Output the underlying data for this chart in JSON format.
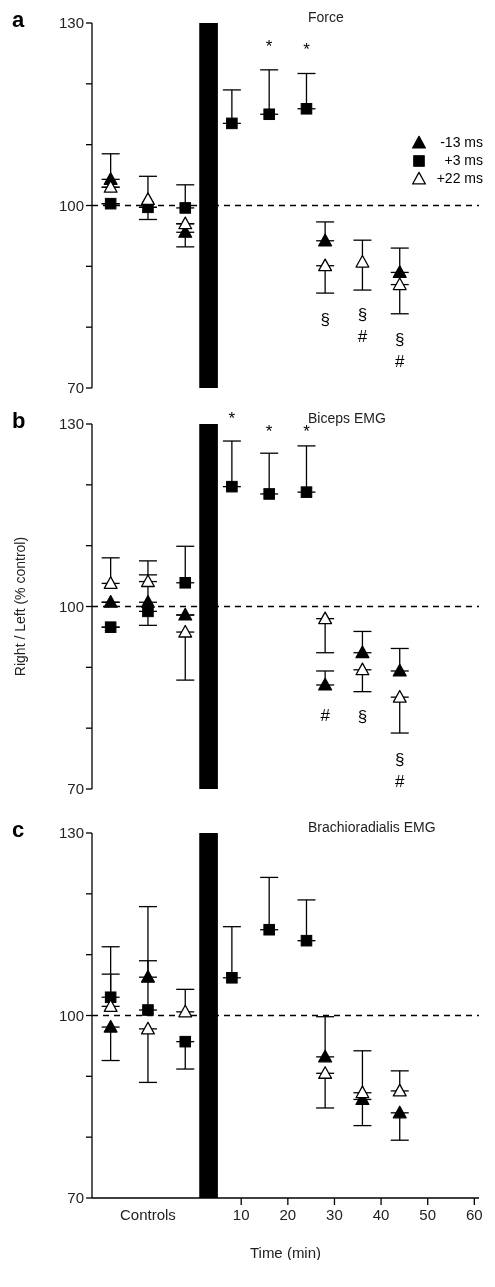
{
  "chart_data": [
    {
      "type": "scatter",
      "title": "Force",
      "annotations": [
        "a",
        "*",
        "*",
        "§",
        "§",
        "#",
        "§",
        "#"
      ],
      "xlim": [
        -22,
        61
      ],
      "ylim": [
        70,
        130
      ],
      "yticks": [
        70,
        {
          "value": 80,
          "label": null
        },
        {
          "value": 90,
          "label": null
        },
        100,
        {
          "value": 110,
          "label": null
        },
        {
          "value": 120,
          "label": null
        },
        130
      ],
      "tick_labels": "y",
      "legend": "top right",
      "ref_lines": [
        {
          "axis": "y",
          "value": 100,
          "color": "#000000",
          "line_style": "dashed"
        }
      ],
      "bands": [
        {
          "axis": "x",
          "from": 1,
          "to": 5,
          "color": "#000000"
        }
      ],
      "series": [
        {
          "name": "-13 ms",
          "color": "#000000",
          "marker": "triangle",
          "x": [
            -18,
            -2,
            28,
            44
          ],
          "values": [
            104.3,
            95.6,
            94.2,
            89.0
          ],
          "errors": [
            [
              104.3,
              108.5
            ],
            [
              93.2,
              95.6
            ],
            [
              94.2,
              97.3
            ],
            [
              89.0,
              93.0
            ]
          ]
        },
        {
          "name": "+3 ms",
          "color": "#000000",
          "marker": "square",
          "x": [
            -18,
            -10,
            -2,
            8,
            16,
            24
          ],
          "values": [
            100.3,
            99.7,
            99.6,
            113.5,
            115.0,
            115.9
          ],
          "errors": [
            null,
            null,
            [
              99.6,
              103.4
            ],
            [
              113.5,
              119.0
            ],
            [
              115.0,
              122.3
            ],
            [
              115.9,
              121.7
            ]
          ]
        },
        {
          "name": "+22 ms",
          "color": "#ffffff",
          "marker": "triangle",
          "x": [
            -18,
            -10,
            -2,
            28,
            36,
            44
          ],
          "values": [
            103.0,
            101.0,
            97.0,
            90.1,
            90.7,
            87.0
          ],
          "errors": [
            null,
            [
              97.7,
              104.8
            ],
            null,
            [
              85.6,
              90.1
            ],
            [
              86.1,
              94.3
            ],
            [
              82.2,
              87.0
            ]
          ]
        }
      ]
    },
    {
      "type": "scatter",
      "title": "Biceps EMG",
      "ylabel": "Right / Left (% control)",
      "annotations": [
        "b",
        "*",
        "*",
        "*",
        "#",
        "§",
        "§",
        "#"
      ],
      "xlim": [
        -22,
        61
      ],
      "ylim": [
        70,
        130
      ],
      "yticks": [
        70,
        {
          "value": 80,
          "label": null
        },
        {
          "value": 90,
          "label": null
        },
        100,
        {
          "value": 110,
          "label": null
        },
        {
          "value": 120,
          "label": null
        },
        130
      ],
      "tick_labels": "y",
      "ref_lines": [
        {
          "axis": "y",
          "value": 100,
          "color": "#000000",
          "line_style": "dashed"
        }
      ],
      "bands": [
        {
          "axis": "x",
          "from": 1,
          "to": 5,
          "color": "#000000"
        }
      ],
      "series": [
        {
          "color": "#000000",
          "marker": "triangle",
          "x": [
            -18,
            -10,
            -2,
            28,
            36,
            44
          ],
          "values": [
            100.7,
            100.7,
            98.6,
            87.1,
            92.4,
            89.4
          ],
          "errors": [
            null,
            [
              100.7,
              105.2
            ],
            null,
            [
              87.1,
              89.4
            ],
            [
              92.4,
              95.9
            ],
            [
              89.4,
              93.1
            ]
          ]
        },
        {
          "color": "#000000",
          "marker": "square",
          "x": [
            -18,
            -10,
            -2,
            8,
            16,
            24
          ],
          "values": [
            96.6,
            99.2,
            103.9,
            119.7,
            118.5,
            118.8
          ],
          "errors": [
            null,
            [
              96.9,
              99.2
            ],
            [
              103.9,
              109.9
            ],
            [
              119.7,
              127.2
            ],
            [
              118.5,
              125.2
            ],
            [
              118.8,
              126.4
            ]
          ]
        },
        {
          "color": "#ffffff",
          "marker": "triangle",
          "x": [
            -18,
            -10,
            -2,
            28,
            36,
            44
          ],
          "values": [
            103.8,
            104.1,
            95.8,
            98.0,
            89.6,
            85.1
          ],
          "errors": [
            [
              103.8,
              108.0
            ],
            [
              104.1,
              107.5
            ],
            [
              87.9,
              95.8
            ],
            [
              92.4,
              98.0
            ],
            [
              86.0,
              89.6
            ],
            [
              79.2,
              85.1
            ]
          ]
        }
      ]
    },
    {
      "type": "scatter",
      "title": "Brachioradialis EMG",
      "xlabel": "Time (min)",
      "annotations": [
        "c"
      ],
      "xlim": [
        -22,
        61
      ],
      "xticks": [
        {
          "value": -10,
          "label": "Controls"
        },
        10,
        20,
        30,
        40,
        50,
        60
      ],
      "ylim": [
        70,
        130
      ],
      "yticks": [
        70,
        {
          "value": 80,
          "label": null
        },
        {
          "value": 90,
          "label": null
        },
        100,
        {
          "value": 110,
          "label": null
        },
        {
          "value": 120,
          "label": null
        },
        130
      ],
      "ref_lines": [
        {
          "axis": "y",
          "value": 100,
          "color": "#000000",
          "line_style": "dashed"
        }
      ],
      "bands": [
        {
          "axis": "x",
          "from": 1,
          "to": 5,
          "color": "#000000"
        }
      ],
      "series": [
        {
          "color": "#000000",
          "marker": "triangle",
          "x": [
            -18,
            -10,
            28,
            36,
            44
          ],
          "values": [
            98.1,
            106.3,
            93.2,
            86.2,
            84.0
          ],
          "errors": [
            [
              92.6,
              98.1
            ],
            [
              106.3,
              117.9
            ],
            [
              93.2,
              99.8
            ],
            [
              81.9,
              86.2
            ],
            [
              79.5,
              84.0
            ]
          ]
        },
        {
          "color": "#000000",
          "marker": "square",
          "x": [
            -18,
            -10,
            -2,
            8,
            16,
            24
          ],
          "values": [
            103.0,
            100.9,
            95.7,
            106.2,
            114.1,
            112.3
          ],
          "errors": [
            [
              103.0,
              111.3
            ],
            [
              100.9,
              109.0
            ],
            [
              91.2,
              95.7
            ],
            [
              106.2,
              114.6
            ],
            [
              114.1,
              122.7
            ],
            [
              112.3,
              119.0
            ]
          ]
        },
        {
          "color": "#ffffff",
          "marker": "triangle",
          "x": [
            -18,
            -10,
            -2,
            28,
            36,
            44
          ],
          "values": [
            101.5,
            97.8,
            100.6,
            90.5,
            87.3,
            87.6
          ],
          "errors": [
            [
              101.5,
              106.8
            ],
            [
              89.0,
              97.8
            ],
            [
              100.6,
              104.3
            ],
            [
              84.8,
              90.5
            ],
            [
              87.3,
              94.2
            ],
            [
              87.6,
              90.9
            ]
          ]
        }
      ]
    }
  ]
}
